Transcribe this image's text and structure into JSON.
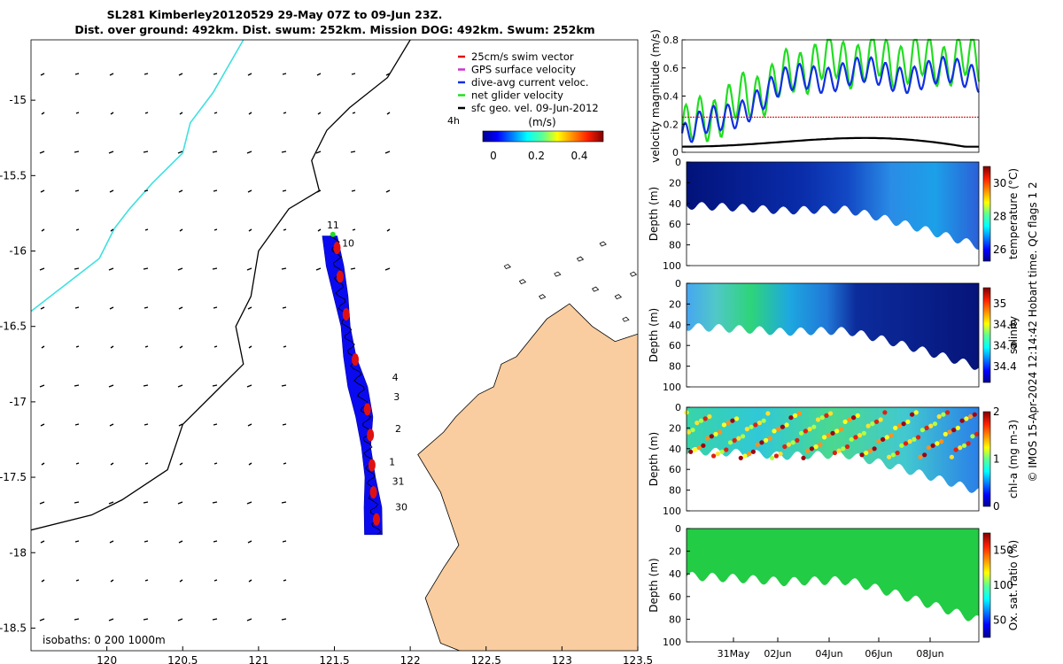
{
  "title": {
    "line1": "SL281 Kimberley20120529 29-May 07Z to 09-Jun 23Z.",
    "line2": "Dist. over ground: 492km. Dist. swum: 252km. Mission DOG: 492km. Swum: 252km"
  },
  "colors": {
    "land": "#f9cd9f",
    "track": "#0a0af0",
    "swim": "#e01010",
    "gps": "#cc33cc",
    "current": "#1030e0",
    "net": "#22dd22",
    "sfc": "#000000",
    "shelf": "#40e0e0"
  },
  "map": {
    "xticks": [
      "120",
      "120.5",
      "121",
      "121.5",
      "122",
      "122.5",
      "123",
      "123.5"
    ],
    "yticks": [
      "-15",
      "-15.5",
      "-16",
      "-16.5",
      "-17",
      "-17.5",
      "-18",
      "-18.5"
    ],
    "xlim": [
      119.5,
      123.5
    ],
    "ylim": [
      -18.65,
      -14.6
    ],
    "isobaths": "isobaths: 0   200  1000m",
    "legend": [
      "25cm/s swim vector",
      "GPS surface velocity",
      "dive-avg current veloc.",
      "net glider velocity",
      "sfc geo. vel. 09-Jun-2012"
    ],
    "colorbar_label": "(m/s)",
    "colorbar_ticks": [
      "0",
      "0.2",
      "0.4"
    ],
    "colorbar_side_label": "4h",
    "day_labels": [
      {
        "t": "11",
        "lon": 121.45,
        "lat": -15.85
      },
      {
        "t": "10",
        "lon": 121.55,
        "lat-": 0,
        "lat": -15.97
      },
      {
        "t": "4",
        "lon": 121.88,
        "lat": -16.86
      },
      {
        "t": "3",
        "lon": 121.89,
        "lat": -16.99
      },
      {
        "t": "2",
        "lon": 121.9,
        "lat": -17.2
      },
      {
        "t": "1",
        "lon": 121.86,
        "lat": -17.42
      },
      {
        "t": "31",
        "lon": 121.88,
        "lat": -17.55
      },
      {
        "t": "30",
        "lon": 121.9,
        "lat": -17.72
      }
    ],
    "track": [
      [
        121.78,
        -17.88
      ],
      [
        121.76,
        -17.7
      ],
      [
        121.74,
        -17.5
      ],
      [
        121.72,
        -17.3
      ],
      [
        121.71,
        -17.1
      ],
      [
        121.67,
        -16.9
      ],
      [
        121.62,
        -16.7
      ],
      [
        121.58,
        -16.5
      ],
      [
        121.54,
        -16.3
      ],
      [
        121.52,
        -16.1
      ],
      [
        121.5,
        -15.9
      ]
    ]
  },
  "velocity": {
    "ylabel": "velocity magnitude (m/s)",
    "yticks": [
      "0",
      "0.2",
      "0.4",
      "0.6",
      "0.8"
    ],
    "ylim": [
      0,
      0.8
    ],
    "swim_ref": 0.25
  },
  "sections": [
    {
      "id": "temperature",
      "label": "temperature (°C)",
      "cticks": [
        "30",
        "28",
        "26"
      ],
      "clim": [
        25.3,
        31
      ]
    },
    {
      "id": "salinity",
      "label": "salinity",
      "cticks": [
        "35",
        "34.8",
        "34.6",
        "34.4"
      ],
      "clim": [
        34.25,
        35.15
      ]
    },
    {
      "id": "chla",
      "label": "chl-a (mg m-3)",
      "cticks": [
        "2",
        "1",
        "0"
      ],
      "clim": [
        0,
        2
      ]
    },
    {
      "id": "oxygen",
      "label": "Ox. sat. ratio (%)",
      "cticks": [
        "150",
        "100",
        "50"
      ],
      "clim": [
        25,
        175
      ]
    }
  ],
  "depth": {
    "ylabel": "Depth (m)",
    "ticks": [
      "0",
      "20",
      "40",
      "60",
      "80",
      "100"
    ],
    "ylim": [
      0,
      100
    ]
  },
  "time_ticks": [
    "31May",
    "02Jun",
    "04Jun",
    "06Jun",
    "08Jun"
  ],
  "credit": "© IMOS 15-Apr-2024 12:14:42 Hobart time. QC flags 1  2"
}
